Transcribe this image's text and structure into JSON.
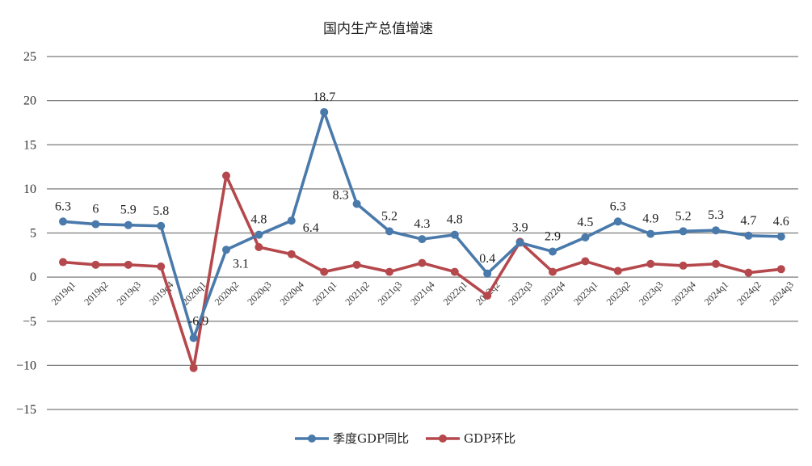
{
  "chart_data": {
    "type": "line",
    "title": "国内生产总值增速",
    "xlabel": "",
    "ylabel": "",
    "ylim": [
      -15,
      25
    ],
    "yticks": [
      25,
      20,
      15,
      10,
      5,
      0,
      -5,
      -10,
      -15
    ],
    "ytick_labels": [
      "25",
      "20",
      "15",
      "10",
      "5",
      "0",
      "−5",
      "−10",
      "−15"
    ],
    "grid": true,
    "legend_position": "bottom-center",
    "categories": [
      "2019q1",
      "2019q2",
      "2019q3",
      "2019q4",
      "2020q1",
      "2020q2",
      "2020q3",
      "2020q4",
      "2021q1",
      "2021q2",
      "2021q3",
      "2021q4",
      "2022q1",
      "2022q2",
      "2022q3",
      "2022q4",
      "2023q1",
      "2023q2",
      "2023q3",
      "2023q4",
      "2024q1",
      "2024q2",
      "2024q3"
    ],
    "series": [
      {
        "name": "季度GDP同比",
        "color": "#4a7aab",
        "values": [
          6.3,
          6,
          5.9,
          5.8,
          -6.9,
          3.1,
          4.8,
          6.4,
          18.7,
          8.3,
          5.2,
          4.3,
          4.8,
          0.4,
          3.9,
          2.9,
          4.5,
          6.3,
          4.9,
          5.2,
          5.3,
          4.7,
          4.6
        ],
        "labels": [
          "6.3",
          "6",
          "5.9",
          "5.8",
          "-6.9",
          "3.1",
          "4.8",
          "6.4",
          "18.7",
          "8.3",
          "5.2",
          "4.3",
          "4.8",
          "0.4",
          "3.9",
          "2.9",
          "4.5",
          "6.3",
          "4.9",
          "5.2",
          "5.3",
          "4.7",
          "4.6"
        ]
      },
      {
        "name": "GDP环比",
        "color": "#b5484c",
        "values": [
          1.7,
          1.4,
          1.4,
          1.2,
          -10.3,
          11.5,
          3.4,
          2.6,
          0.6,
          1.4,
          0.6,
          1.6,
          0.6,
          -2.1,
          4.0,
          0.6,
          1.8,
          0.7,
          1.5,
          1.3,
          1.5,
          0.5,
          0.9
        ]
      }
    ]
  }
}
